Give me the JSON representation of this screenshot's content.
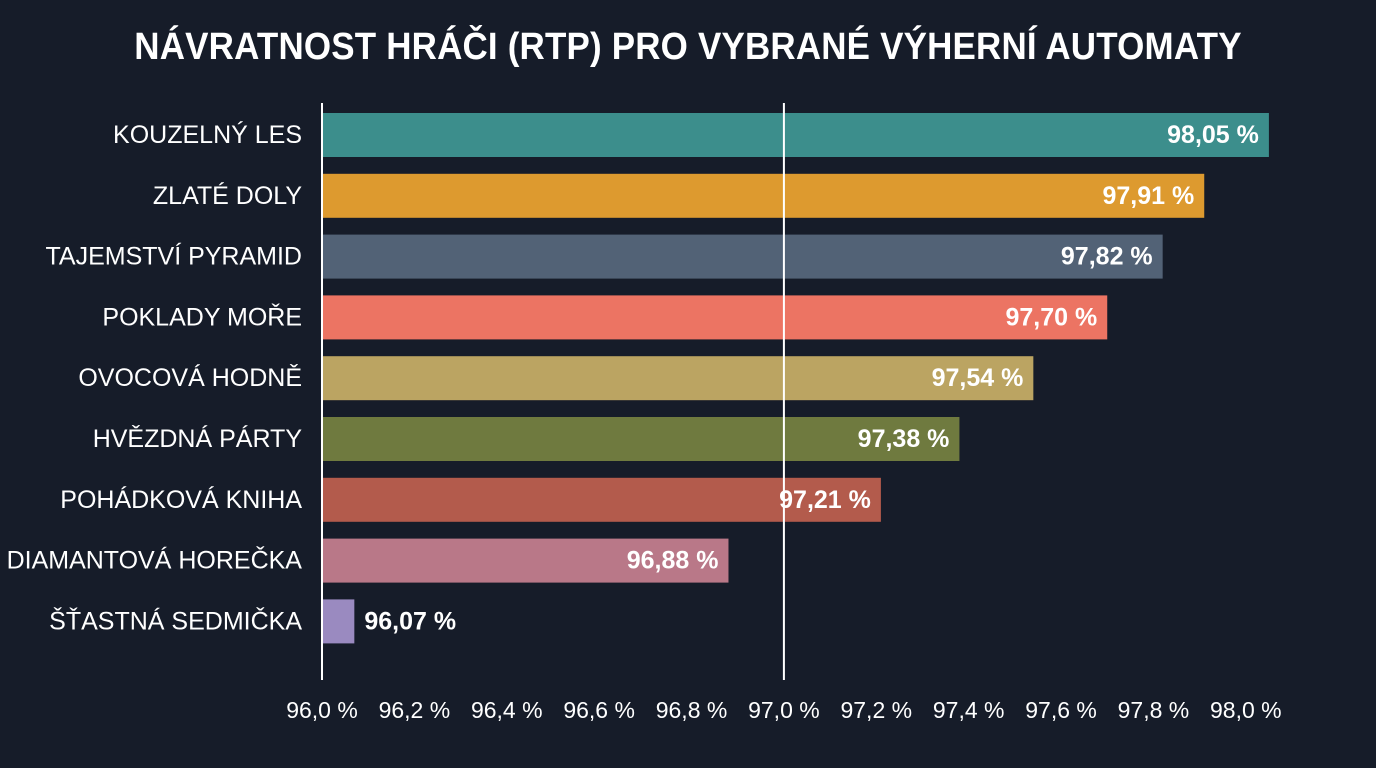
{
  "chart_data": {
    "type": "bar",
    "orientation": "horizontal",
    "title": "NÁVRATNOST HRÁČI (RTP) PRO VYBRANÉ VÝHERNÍ AUTOMATY",
    "xlabel": "",
    "ylabel": "",
    "xlim": [
      96.0,
      98.1
    ],
    "grid": false,
    "reference_line": 97.0,
    "categories": [
      "KOUZELNÝ LES",
      "ZLATÉ DOLY",
      "TAJEMSTVÍ PYRAMID",
      "POKLADY MOŘE",
      "OVOCOVÁ HODNĚ",
      "HVĚZDNÁ PÁRTY",
      "POHÁDKOVÁ KNIHA",
      "DIAMANTOVÁ HOREČKA",
      "ŠŤASTNÁ SEDMIČKA"
    ],
    "values": [
      98.05,
      97.91,
      97.82,
      97.7,
      97.54,
      97.38,
      97.21,
      96.88,
      96.07
    ],
    "value_labels": [
      "98,05 %",
      "97,91 %",
      "97,82 %",
      "97,70 %",
      "97,54 %",
      "97,38 %",
      "97,21 %",
      "96,88 %",
      "96,07 %"
    ],
    "colors": [
      "#3c8e8c",
      "#dd9a2f",
      "#526276",
      "#ec7463",
      "#bba462",
      "#6f7a3f",
      "#b35b4c",
      "#b97888",
      "#9a8ac0"
    ],
    "ticks": [
      {
        "value": 96.0,
        "label": "96,0 %"
      },
      {
        "value": 96.2,
        "label": "96,2 %"
      },
      {
        "value": 96.4,
        "label": "96,4 %"
      },
      {
        "value": 96.6,
        "label": "96,6 %"
      },
      {
        "value": 96.8,
        "label": "96,8 %"
      },
      {
        "value": 97.0,
        "label": "97,0 %"
      },
      {
        "value": 97.2,
        "label": "97,2 %"
      },
      {
        "value": 97.4,
        "label": "97,4 %"
      },
      {
        "value": 97.6,
        "label": "97,6 %"
      },
      {
        "value": 97.8,
        "label": "97,8 %"
      },
      {
        "value": 98.0,
        "label": "98,0 %"
      }
    ]
  },
  "theme": {
    "background": "#161c29",
    "text": "#ffffff",
    "axis_line": "#ffffff"
  }
}
